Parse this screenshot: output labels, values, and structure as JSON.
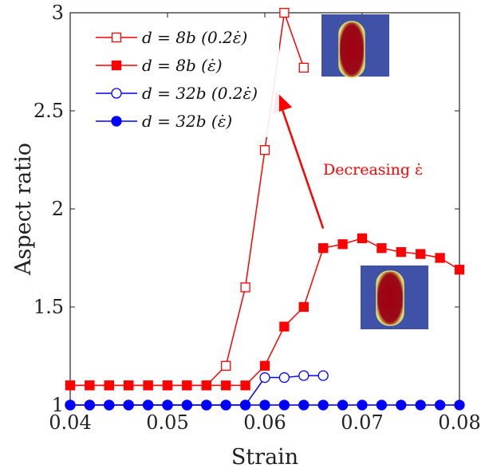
{
  "chart_data": {
    "type": "line",
    "xlabel": "Strain",
    "ylabel": "Aspect ratio",
    "xlim": [
      0.04,
      0.08
    ],
    "ylim": [
      1,
      3
    ],
    "xticks": [
      "0.04",
      "0.05",
      "0.06",
      "0.07",
      "0.08"
    ],
    "yticks": [
      "1",
      "1.5",
      "2",
      "2.5",
      "3"
    ],
    "grid": false,
    "legend_position": "top-left",
    "series": [
      {
        "name": "d = 8b (0.2ε̇)",
        "color": "#ff0000",
        "marker": "square-open",
        "x": [
          0.04,
          0.042,
          0.044,
          0.046,
          0.048,
          0.05,
          0.052,
          0.054,
          0.056,
          0.058,
          0.06,
          0.062,
          0.064
        ],
        "y": [
          1.1,
          1.1,
          1.1,
          1.1,
          1.1,
          1.1,
          1.1,
          1.1,
          1.2,
          1.6,
          2.3,
          3.0,
          2.72
        ]
      },
      {
        "name": "d = 8b (ε̇)",
        "color": "#ff0000",
        "marker": "square-filled",
        "x": [
          0.04,
          0.042,
          0.044,
          0.046,
          0.048,
          0.05,
          0.052,
          0.054,
          0.056,
          0.058,
          0.06,
          0.062,
          0.064,
          0.066,
          0.068,
          0.07,
          0.072,
          0.074,
          0.076,
          0.078,
          0.08
        ],
        "y": [
          1.1,
          1.1,
          1.1,
          1.1,
          1.1,
          1.1,
          1.1,
          1.1,
          1.1,
          1.1,
          1.2,
          1.4,
          1.5,
          1.8,
          1.82,
          1.85,
          1.8,
          1.78,
          1.77,
          1.75,
          1.69
        ]
      },
      {
        "name": "d = 32b (0.2ε̇)",
        "color": "#0000ff",
        "marker": "circle-open",
        "x": [
          0.04,
          0.042,
          0.044,
          0.046,
          0.048,
          0.05,
          0.052,
          0.054,
          0.056,
          0.058,
          0.06,
          0.062,
          0.064,
          0.066
        ],
        "y": [
          1.0,
          1.0,
          1.0,
          1.0,
          1.0,
          1.0,
          1.0,
          1.0,
          1.0,
          1.0,
          1.14,
          1.14,
          1.15,
          1.15
        ]
      },
      {
        "name": "d = 32b (ε̇)",
        "color": "#0000ff",
        "marker": "circle-filled",
        "x": [
          0.04,
          0.042,
          0.044,
          0.046,
          0.048,
          0.05,
          0.052,
          0.054,
          0.056,
          0.058,
          0.06,
          0.062,
          0.064,
          0.066,
          0.068,
          0.07,
          0.072,
          0.074,
          0.076,
          0.078,
          0.08
        ],
        "y": [
          1.0,
          1.0,
          1.0,
          1.0,
          1.0,
          1.0,
          1.0,
          1.0,
          1.0,
          1.0,
          1.0,
          1.0,
          1.0,
          1.0,
          1.0,
          1.0,
          1.0,
          1.0,
          1.0,
          1.0,
          1.0
        ]
      }
    ],
    "annotations": [
      {
        "text": "Decreasing  ε̇",
        "color": "#ff0000",
        "arrow_from": [
          0.066,
          1.9
        ],
        "arrow_to": [
          0.0615,
          2.55
        ]
      }
    ]
  }
}
